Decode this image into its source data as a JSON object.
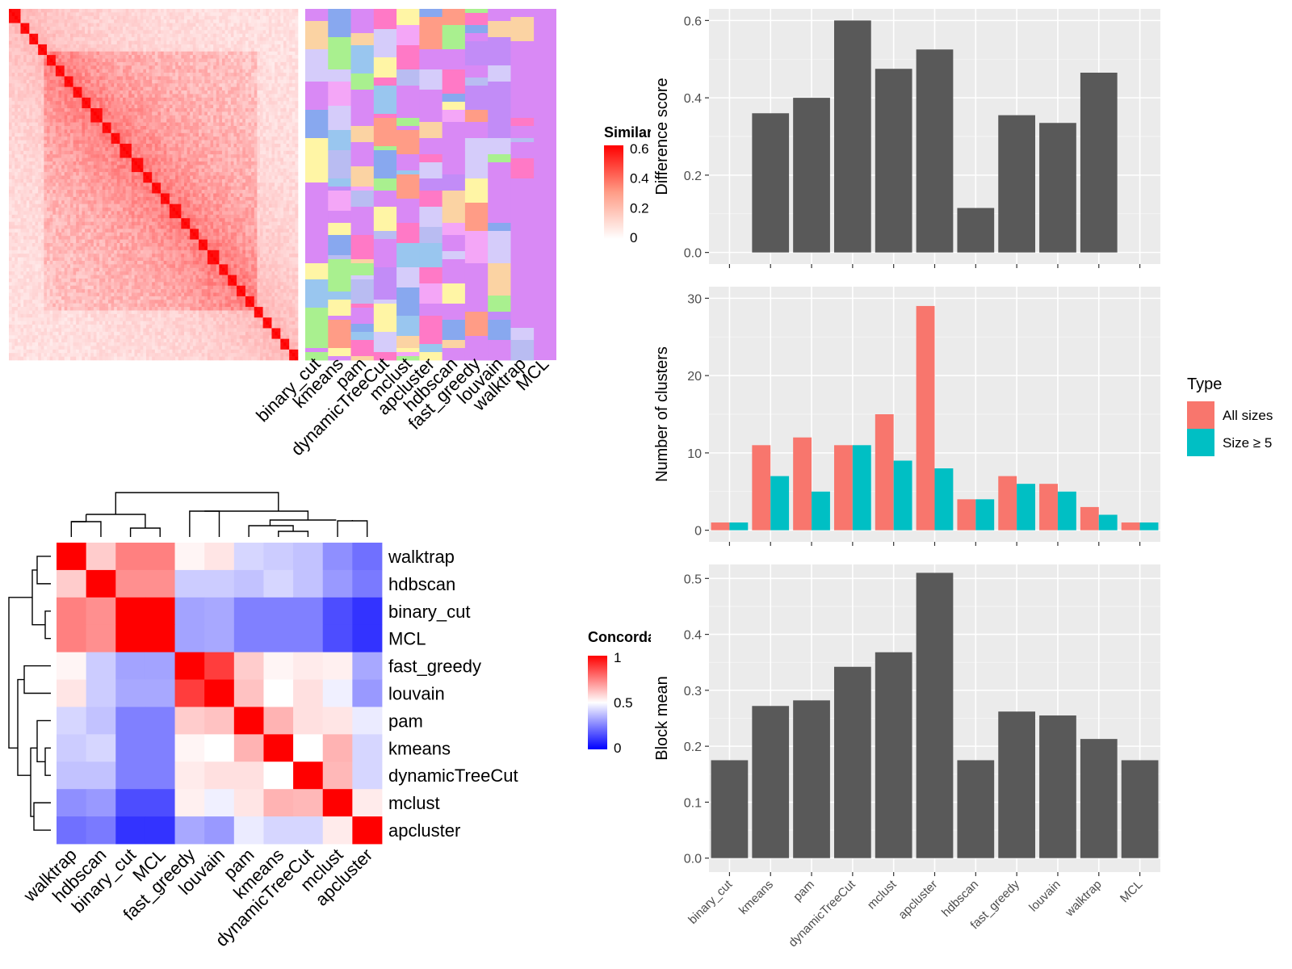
{
  "methods_heatmap": [
    "walktrap",
    "hdbscan",
    "binary_cut",
    "MCL",
    "fast_greedy",
    "louvain",
    "pam",
    "kmeans",
    "dynamicTreeCut",
    "mclust",
    "apcluster"
  ],
  "methods_bar": [
    "binary_cut",
    "kmeans",
    "pam",
    "dynamicTreeCut",
    "mclust",
    "apcluster",
    "hdbscan",
    "fast_greedy",
    "louvain",
    "walktrap",
    "MCL"
  ],
  "chart_data": [
    {
      "type": "heatmap",
      "title": "",
      "legend_title": "Similarity",
      "legend_ticks": [
        "0",
        "0.2",
        "0.4",
        "0.6"
      ],
      "colors": [
        "#ffffff",
        "#ff0000"
      ],
      "column_labels": [
        "binary_cut",
        "kmeans",
        "pam",
        "dynamicTreeCut",
        "mclust",
        "apcluster",
        "hdbscan",
        "fast_greedy",
        "louvain",
        "walktrap",
        "MCL"
      ]
    },
    {
      "type": "heatmap",
      "title": "",
      "legend_title": "Concordance",
      "legend_ticks": [
        "0",
        "0.5",
        "1"
      ],
      "colors": [
        "#0000ff",
        "#ffffff",
        "#ff0000"
      ],
      "rows": [
        "walktrap",
        "hdbscan",
        "binary_cut",
        "MCL",
        "fast_greedy",
        "louvain",
        "pam",
        "kmeans",
        "dynamicTreeCut",
        "mclust",
        "apcluster"
      ],
      "columns": [
        "walktrap",
        "hdbscan",
        "binary_cut",
        "MCL",
        "fast_greedy",
        "louvain",
        "pam",
        "kmeans",
        "dynamicTreeCut",
        "mclust",
        "apcluster"
      ],
      "values": [
        [
          1.0,
          0.6,
          0.75,
          0.75,
          0.52,
          0.55,
          0.42,
          0.4,
          0.38,
          0.28,
          0.22
        ],
        [
          0.6,
          1.0,
          0.72,
          0.72,
          0.4,
          0.4,
          0.38,
          0.42,
          0.38,
          0.3,
          0.24
        ],
        [
          0.75,
          0.72,
          1.0,
          1.0,
          0.32,
          0.33,
          0.25,
          0.25,
          0.25,
          0.15,
          0.1
        ],
        [
          0.75,
          0.72,
          1.0,
          1.0,
          0.32,
          0.33,
          0.25,
          0.25,
          0.25,
          0.15,
          0.1
        ],
        [
          0.52,
          0.4,
          0.32,
          0.32,
          1.0,
          0.88,
          0.6,
          0.52,
          0.54,
          0.53,
          0.33
        ],
        [
          0.55,
          0.4,
          0.33,
          0.33,
          0.88,
          1.0,
          0.62,
          0.5,
          0.56,
          0.47,
          0.3
        ],
        [
          0.42,
          0.38,
          0.25,
          0.25,
          0.6,
          0.62,
          1.0,
          0.65,
          0.56,
          0.55,
          0.46
        ],
        [
          0.4,
          0.42,
          0.25,
          0.25,
          0.52,
          0.5,
          0.65,
          1.0,
          0.5,
          0.65,
          0.42
        ],
        [
          0.38,
          0.38,
          0.25,
          0.25,
          0.54,
          0.56,
          0.56,
          0.5,
          1.0,
          0.64,
          0.42
        ],
        [
          0.28,
          0.3,
          0.15,
          0.15,
          0.53,
          0.47,
          0.55,
          0.65,
          0.64,
          1.0,
          0.54
        ],
        [
          0.22,
          0.24,
          0.1,
          0.1,
          0.33,
          0.3,
          0.46,
          0.42,
          0.42,
          0.54,
          1.0
        ]
      ]
    },
    {
      "type": "bar",
      "xlabel": "",
      "ylabel": "Difference score",
      "ylim": [
        0,
        0.6
      ],
      "yticks": [
        "0.0",
        "0.2",
        "0.4",
        "0.6"
      ],
      "categories": [
        "binary_cut",
        "kmeans",
        "pam",
        "dynamicTreeCut",
        "mclust",
        "apcluster",
        "hdbscan",
        "fast_greedy",
        "louvain",
        "walktrap",
        "MCL"
      ],
      "values": [
        0,
        0.36,
        0.4,
        0.6,
        0.475,
        0.525,
        0.115,
        0.355,
        0.335,
        0.465,
        0
      ],
      "color": "#595959"
    },
    {
      "type": "bar",
      "xlabel": "",
      "ylabel": "Number of clusters",
      "ylim": [
        0,
        30
      ],
      "yticks": [
        "0",
        "10",
        "20",
        "30"
      ],
      "categories": [
        "binary_cut",
        "kmeans",
        "pam",
        "dynamicTreeCut",
        "mclust",
        "apcluster",
        "hdbscan",
        "fast_greedy",
        "louvain",
        "walktrap",
        "MCL"
      ],
      "legend_title": "Type",
      "legend_position": "right",
      "series": [
        {
          "name": "All sizes",
          "color": "#F8766D",
          "values": [
            1,
            11,
            12,
            11,
            15,
            29,
            4,
            7,
            6,
            3,
            1
          ]
        },
        {
          "name": "Size ≥ 5",
          "color": "#00BFC4",
          "values": [
            1,
            7,
            5,
            11,
            9,
            8,
            4,
            6,
            5,
            2,
            1
          ]
        }
      ]
    },
    {
      "type": "bar",
      "xlabel": "",
      "ylabel": "Block mean",
      "ylim": [
        0,
        0.5
      ],
      "yticks": [
        "0.0",
        "0.1",
        "0.2",
        "0.3",
        "0.4",
        "0.5"
      ],
      "categories": [
        "binary_cut",
        "kmeans",
        "pam",
        "dynamicTreeCut",
        "mclust",
        "apcluster",
        "hdbscan",
        "fast_greedy",
        "louvain",
        "walktrap",
        "MCL"
      ],
      "values": [
        0.175,
        0.272,
        0.282,
        0.342,
        0.368,
        0.51,
        0.175,
        0.262,
        0.255,
        0.213,
        0.175
      ],
      "color": "#595959"
    }
  ]
}
